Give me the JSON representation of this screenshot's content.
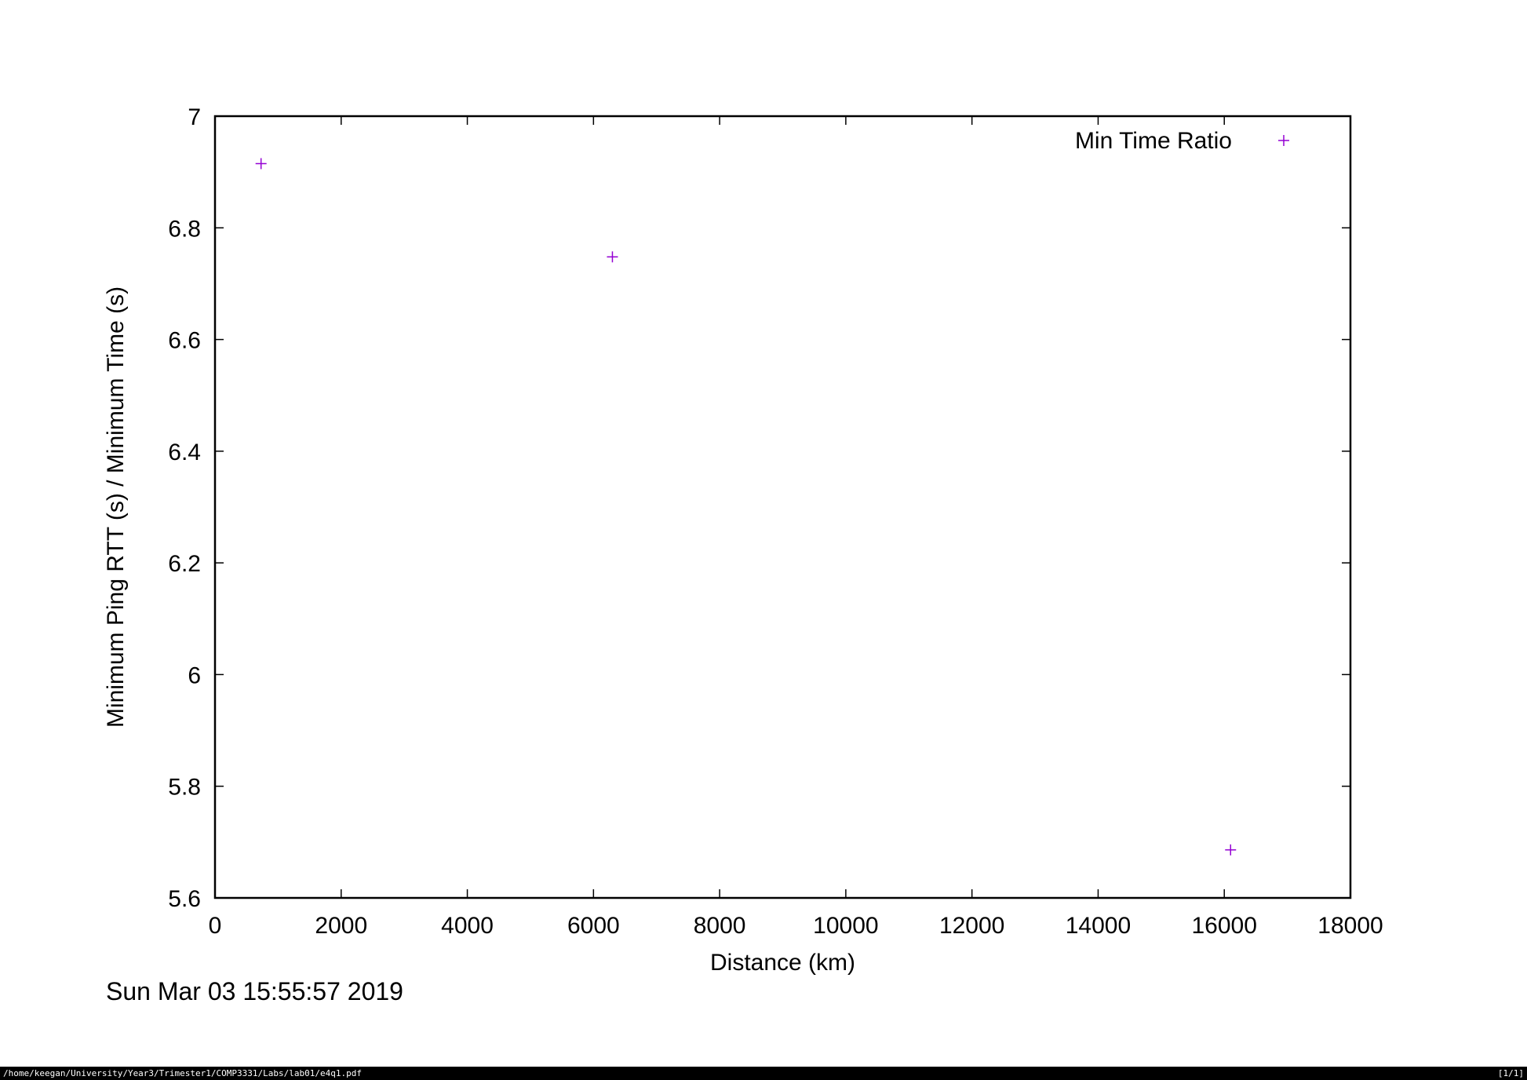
{
  "chart_data": {
    "type": "scatter",
    "title": "",
    "xlabel": "Distance (km)",
    "ylabel": "Minimum Ping RTT (s) / Minimum Time (s)",
    "xlim": [
      0,
      18000
    ],
    "ylim": [
      5.6,
      7.0
    ],
    "xticks": [
      0,
      2000,
      4000,
      6000,
      8000,
      10000,
      12000,
      14000,
      16000,
      18000
    ],
    "yticks": [
      5.6,
      5.8,
      6.0,
      6.2,
      6.4,
      6.6,
      6.8,
      7.0
    ],
    "xtick_labels": [
      "0",
      "2000",
      "4000",
      "6000",
      "8000",
      "10000",
      "12000",
      "14000",
      "16000",
      "18000"
    ],
    "ytick_labels": [
      "5.6",
      "5.8",
      "6",
      "6.2",
      "6.4",
      "6.6",
      "6.8",
      "7"
    ],
    "grid": false,
    "legend_position": "top-right",
    "series": [
      {
        "name": "Min Time Ratio",
        "marker": "plus",
        "color": "#9400d3",
        "points": [
          {
            "x": 730,
            "y": 6.915
          },
          {
            "x": 6300,
            "y": 6.748
          },
          {
            "x": 16100,
            "y": 5.686
          }
        ]
      }
    ]
  },
  "timestamp": "Sun Mar 03 15:55:57 2019",
  "statusbar": {
    "path": "/home/keegan/University/Year3/Trimester1/COMP3331/Labs/lab01/e4q1.pdf",
    "page": "[1/1]"
  }
}
